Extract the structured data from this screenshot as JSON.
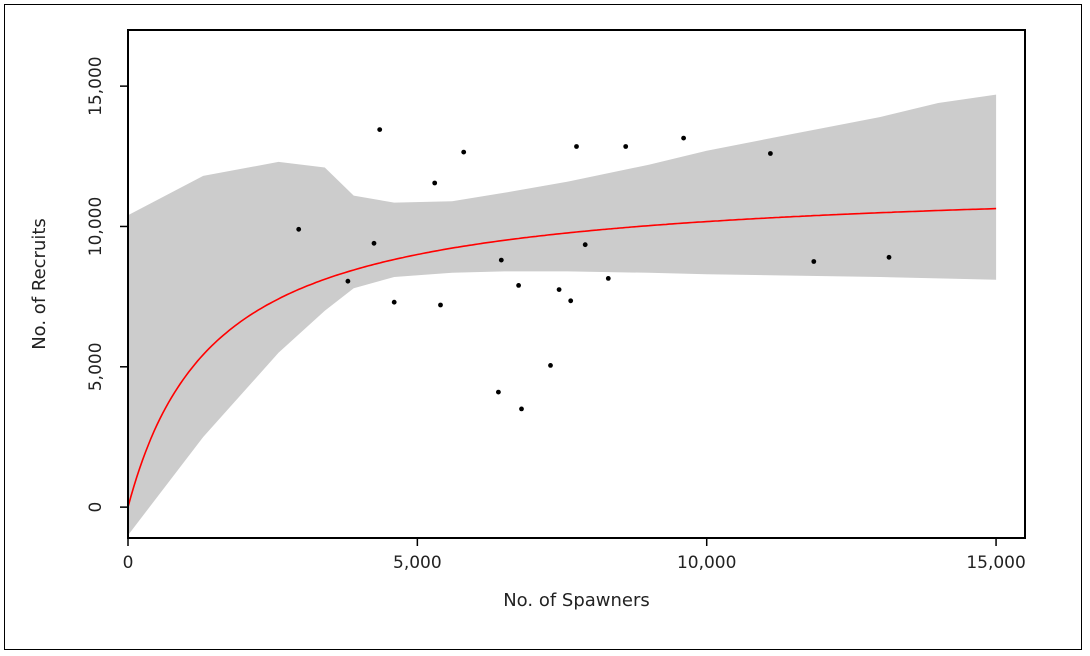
{
  "chart_data": {
    "type": "scatter",
    "title": "",
    "xlabel": "No. of Spawners",
    "ylabel": "No. of Recruits",
    "xlim": [
      0,
      15500
    ],
    "ylim": [
      -1100,
      17000
    ],
    "x_ticks": [
      {
        "value": 0,
        "label": "0"
      },
      {
        "value": 5000,
        "label": "5,000"
      },
      {
        "value": 10000,
        "label": "10,000"
      },
      {
        "value": 15000,
        "label": "15,000"
      }
    ],
    "y_ticks": [
      {
        "value": 0,
        "label": "0"
      },
      {
        "value": 5000,
        "label": "5,000"
      },
      {
        "value": 10000,
        "label": "10,000"
      },
      {
        "value": 15000,
        "label": "15,000"
      }
    ],
    "points": [
      {
        "x": 2950,
        "y": 9900
      },
      {
        "x": 3800,
        "y": 8050
      },
      {
        "x": 4250,
        "y": 9400
      },
      {
        "x": 4350,
        "y": 13450
      },
      {
        "x": 4600,
        "y": 7300
      },
      {
        "x": 5300,
        "y": 11550
      },
      {
        "x": 5400,
        "y": 7200
      },
      {
        "x": 5800,
        "y": 12650
      },
      {
        "x": 6400,
        "y": 4100
      },
      {
        "x": 6450,
        "y": 8800
      },
      {
        "x": 6750,
        "y": 7900
      },
      {
        "x": 6800,
        "y": 3500
      },
      {
        "x": 7300,
        "y": 5050
      },
      {
        "x": 7450,
        "y": 7750
      },
      {
        "x": 7650,
        "y": 7350
      },
      {
        "x": 7750,
        "y": 12850
      },
      {
        "x": 7900,
        "y": 9350
      },
      {
        "x": 8300,
        "y": 8150
      },
      {
        "x": 8600,
        "y": 12850
      },
      {
        "x": 9600,
        "y": 13150
      },
      {
        "x": 11100,
        "y": 12600
      },
      {
        "x": 11850,
        "y": 8750
      },
      {
        "x": 13150,
        "y": 8900
      }
    ],
    "fit_curve": {
      "model": "beverton-holt",
      "a": 11700,
      "b": 1500,
      "x_range": [
        0,
        15000
      ]
    },
    "confidence_band": {
      "x": [
        0,
        1300,
        2600,
        3400,
        3900,
        4600,
        5600,
        6500,
        7600,
        9000,
        10000,
        11500,
        13000,
        14000,
        15000
      ],
      "upper": [
        10400,
        11800,
        12300,
        12100,
        11100,
        10850,
        10900,
        11200,
        11600,
        12200,
        12700,
        13300,
        13900,
        14400,
        14700
      ],
      "lower": [
        -1000,
        2500,
        5500,
        7000,
        7800,
        8200,
        8350,
        8400,
        8400,
        8350,
        8300,
        8250,
        8200,
        8150,
        8100
      ]
    },
    "colors": {
      "band": "#cccccc",
      "fit": "#ff0000",
      "points": "#000000",
      "axis": "#000000"
    },
    "legend": "none",
    "grid": false
  }
}
